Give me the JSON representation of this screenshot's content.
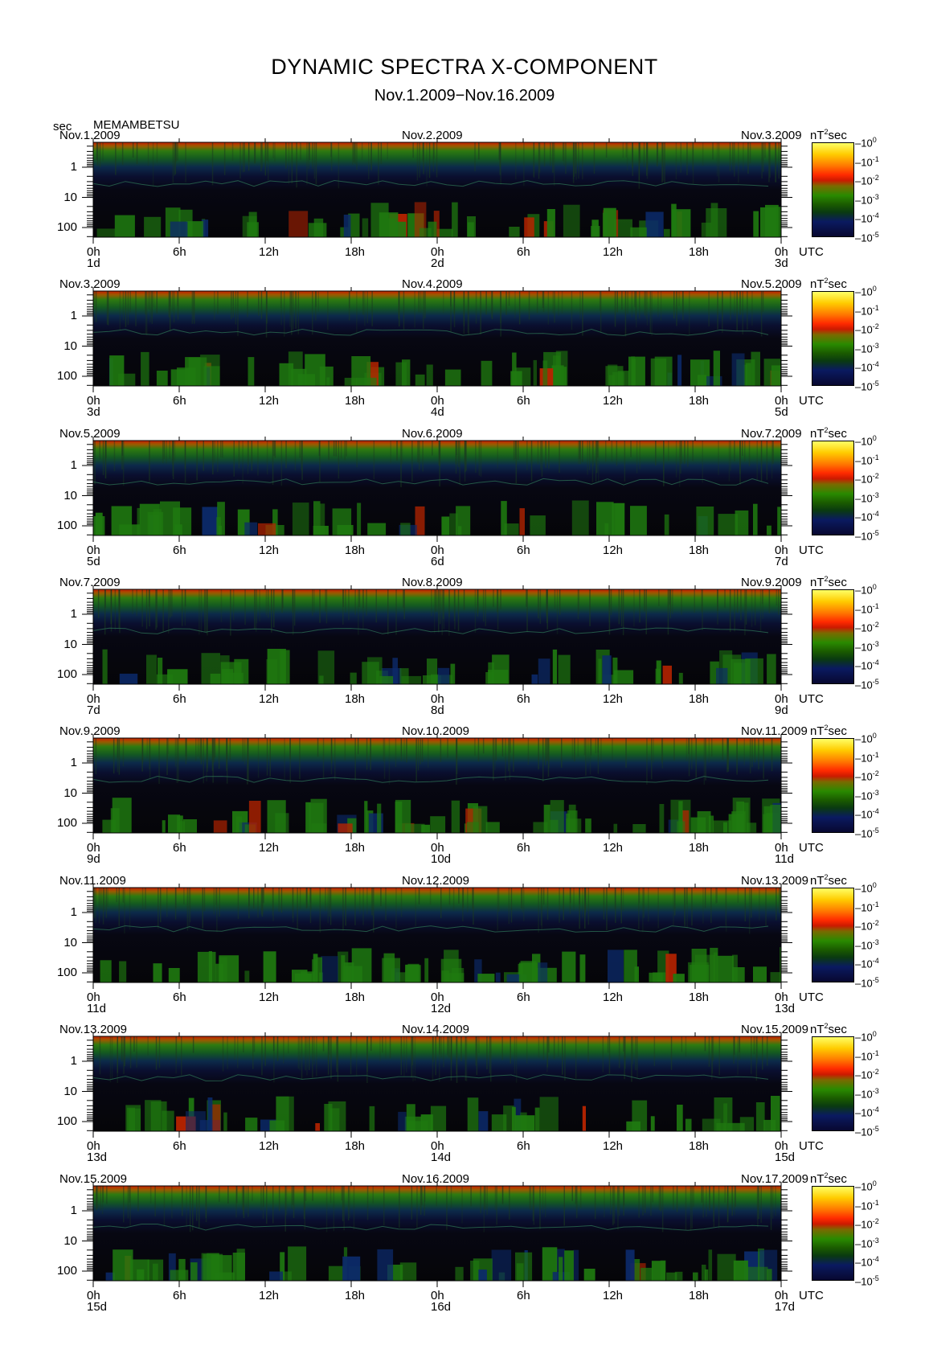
{
  "chart_data": {
    "type": "heatmap",
    "title": "DYNAMIC SPECTRA X-COMPONENT",
    "subtitle": "Nov.1.2009−Nov.16.2009",
    "station": "MEMAMBETSU",
    "ylabel": "sec",
    "y_scale": "log",
    "y_ticks": [
      "1",
      "10",
      "100"
    ],
    "x_ticks": [
      "0h",
      "6h",
      "12h",
      "18h",
      "0h",
      "6h",
      "12h",
      "18h",
      "0h"
    ],
    "x_unit": "UTC",
    "colorbar": {
      "unit": "nT",
      "unit_power": "2",
      "unit_suffix": "sec",
      "labels": [
        {
          "base": "10",
          "exp": "0"
        },
        {
          "base": "10",
          "exp": "-1"
        },
        {
          "base": "10",
          "exp": "-2"
        },
        {
          "base": "10",
          "exp": "-3"
        },
        {
          "base": "10",
          "exp": "-4"
        },
        {
          "base": "10",
          "exp": "-5"
        }
      ]
    },
    "panels": [
      {
        "dates": [
          "Nov.1.2009",
          "Nov.2.2009",
          "Nov.3.2009"
        ],
        "day_labels": [
          "1d",
          "2d",
          "3d"
        ]
      },
      {
        "dates": [
          "Nov.3.2009",
          "Nov.4.2009",
          "Nov.5.2009"
        ],
        "day_labels": [
          "3d",
          "4d",
          "5d"
        ]
      },
      {
        "dates": [
          "Nov.5.2009",
          "Nov.6.2009",
          "Nov.7.2009"
        ],
        "day_labels": [
          "5d",
          "6d",
          "7d"
        ]
      },
      {
        "dates": [
          "Nov.7.2009",
          "Nov.8.2009",
          "Nov.9.2009"
        ],
        "day_labels": [
          "7d",
          "8d",
          "9d"
        ]
      },
      {
        "dates": [
          "Nov.9.2009",
          "Nov.10.2009",
          "Nov.11.2009"
        ],
        "day_labels": [
          "9d",
          "10d",
          "11d"
        ]
      },
      {
        "dates": [
          "Nov.11.2009",
          "Nov.12.2009",
          "Nov.13.2009"
        ],
        "day_labels": [
          "11d",
          "12d",
          "13d"
        ]
      },
      {
        "dates": [
          "Nov.13.2009",
          "Nov.14.2009",
          "Nov.15.2009"
        ],
        "day_labels": [
          "13d",
          "14d",
          "15d"
        ]
      },
      {
        "dates": [
          "Nov.15.2009",
          "Nov.16.2009",
          "Nov.17.2009"
        ],
        "day_labels": [
          "15d",
          "16d",
          "17d"
        ]
      }
    ]
  }
}
